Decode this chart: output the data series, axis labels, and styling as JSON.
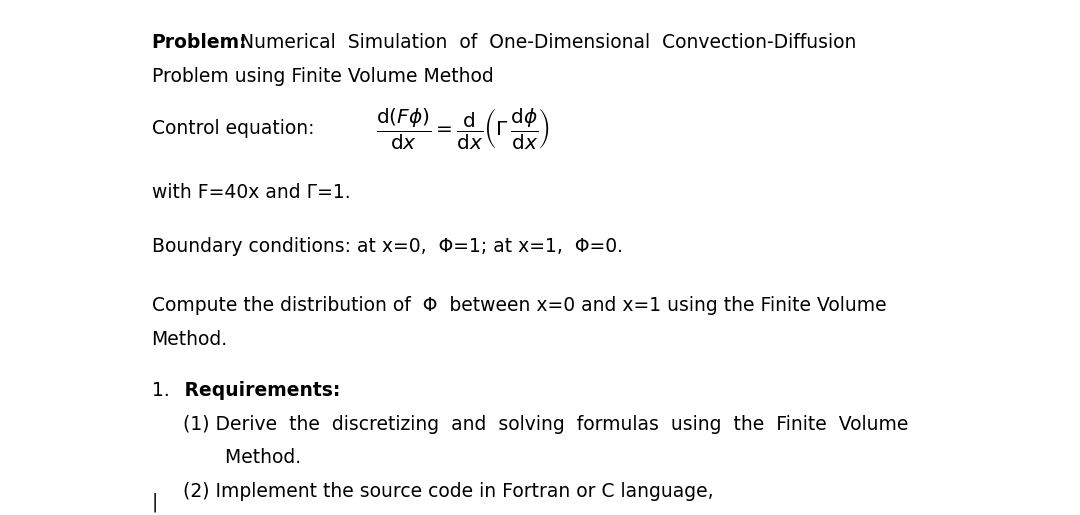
{
  "bg_color": "#ffffff",
  "text_color": "#000000",
  "title_bold": "Problem:",
  "title_normal": "  Numerical  Simulation  of  One-Dimensional  Convection-Diffusion",
  "title_line2": "Problem using Finite Volume Method",
  "ctrl_label": "Control equation:",
  "with_line": "with F=40x and Γ=1.",
  "boundary_line": "Boundary conditions: at x=0,  Φ=1; at x=1,  Φ=0.",
  "compute_line1": "Compute the distribution of  Φ  between x=0 and x=1 using the Finite Volume",
  "compute_line2": "Method.",
  "req_num": "1.",
  "req_bold": " Requirements:",
  "req1": "(1) Derive  the  discretizing  and  solving  formulas  using  the  Finite  Volume",
  "req1b": "       Method.",
  "req2": "(2) Implement the source code in Fortran or C language,",
  "font_size": 13.5,
  "font_family": "DejaVu Sans"
}
